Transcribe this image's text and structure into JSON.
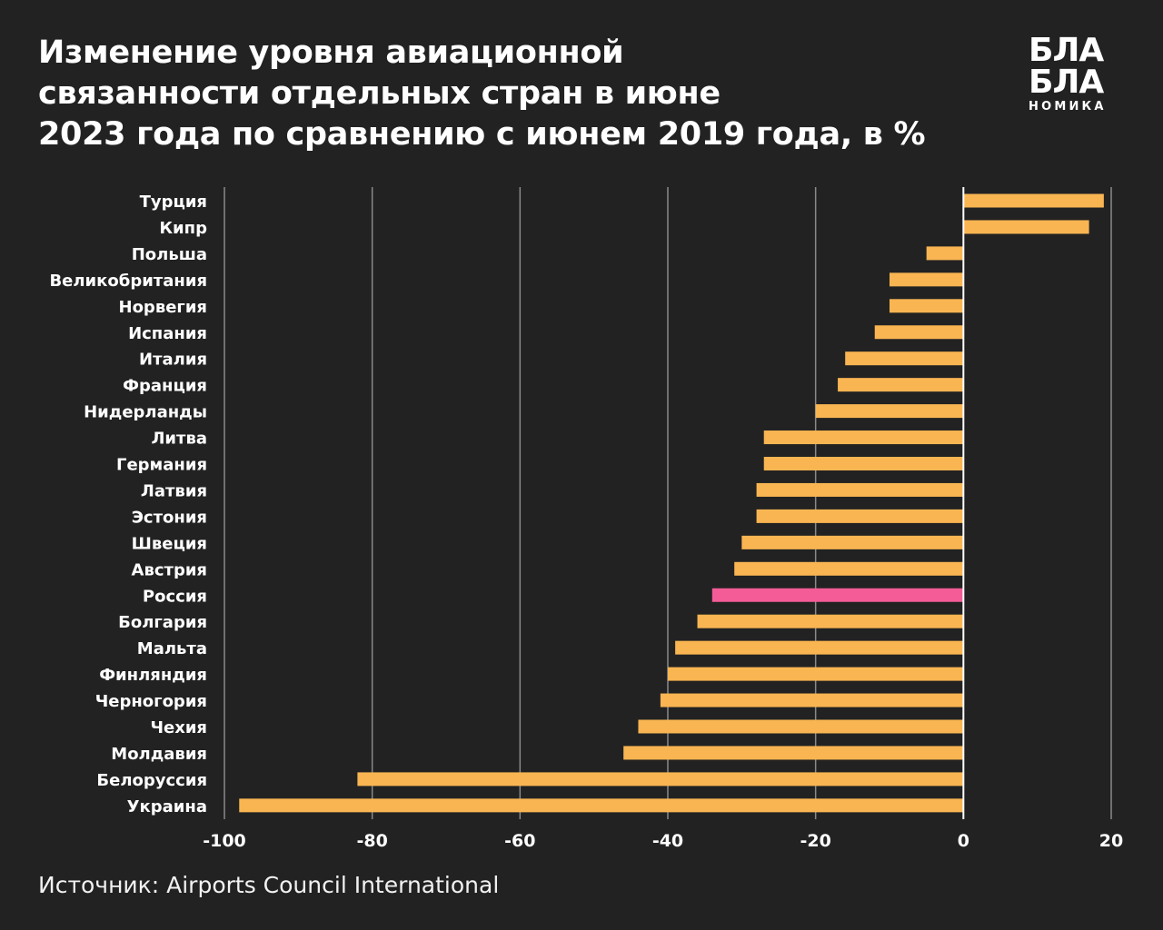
{
  "title_lines": [
    "Изменение уровня авиационной",
    "связанности отдельных стран в июне",
    "2023 года по сравнению с июнем 2019 года, в %"
  ],
  "logo": {
    "line1": "БЛА",
    "line2": "БЛА",
    "line3": "НОМИКА"
  },
  "source": "Источник: Airports Council International",
  "colors": {
    "background": "#222222",
    "bar": "#F9B552",
    "highlight": "#F45C97",
    "grid": "#8a8a8a",
    "zero_line": "#ffffff",
    "text": "#ffffff"
  },
  "chart_data": {
    "type": "bar",
    "orientation": "horizontal",
    "title": "Изменение уровня авиационной связанности отдельных стран в июне 2023 года по сравнению с июнем 2019 года, в %",
    "xlabel": "",
    "ylabel": "",
    "xlim": [
      -100,
      20
    ],
    "xticks": [
      -100,
      -80,
      -60,
      -40,
      -20,
      0,
      20
    ],
    "grid": true,
    "highlight": "Россия",
    "categories": [
      "Турция",
      "Кипр",
      "Польша",
      "Великобритания",
      "Норвегия",
      "Испания",
      "Италия",
      "Франция",
      "Нидерланды",
      "Литва",
      "Германия",
      "Латвия",
      "Эстония",
      "Швеция",
      "Австрия",
      "Россия",
      "Болгария",
      "Мальта",
      "Финляндия",
      "Черногория",
      "Чехия",
      "Молдавия",
      "Белоруссия",
      "Украина"
    ],
    "values": [
      19,
      17,
      -5,
      -10,
      -10,
      -12,
      -16,
      -17,
      -20,
      -27,
      -27,
      -28,
      -28,
      -30,
      -31,
      -34,
      -36,
      -39,
      -40,
      -41,
      -44,
      -46,
      -82,
      -98
    ]
  }
}
